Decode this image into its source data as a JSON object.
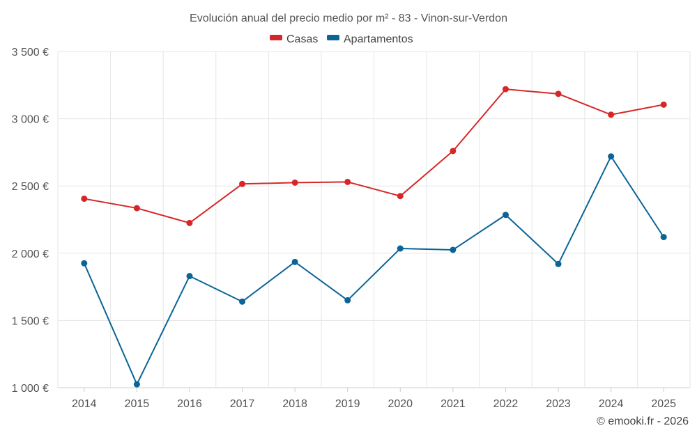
{
  "chart_data": {
    "type": "line",
    "title": "Evolución anual del precio medio por m² - 83 - Vinon-sur-Verdon",
    "categories": [
      "2014",
      "2015",
      "2016",
      "2017",
      "2018",
      "2019",
      "2020",
      "2021",
      "2022",
      "2023",
      "2024",
      "2025"
    ],
    "series": [
      {
        "name": "Casas",
        "color": "#d62728",
        "values": [
          2405,
          2335,
          2225,
          2515,
          2525,
          2530,
          2425,
          2760,
          3220,
          3185,
          3030,
          3105
        ]
      },
      {
        "name": "Apartamentos",
        "color": "#0a6496",
        "values": [
          1925,
          1025,
          1830,
          1640,
          1935,
          1650,
          2035,
          2025,
          2285,
          1920,
          2720,
          2120
        ]
      }
    ],
    "ylim": [
      1000,
      3500
    ],
    "yticks": [
      1000,
      1500,
      2000,
      2500,
      3000,
      3500
    ],
    "ytick_labels": [
      "1 000 €",
      "1 500 €",
      "2 000 €",
      "2 500 €",
      "3 000 €",
      "3 500 €"
    ],
    "legend_position": "top-center",
    "grid": true,
    "xlabel": "",
    "ylabel": ""
  },
  "credit": "© emooki.fr - 2026"
}
